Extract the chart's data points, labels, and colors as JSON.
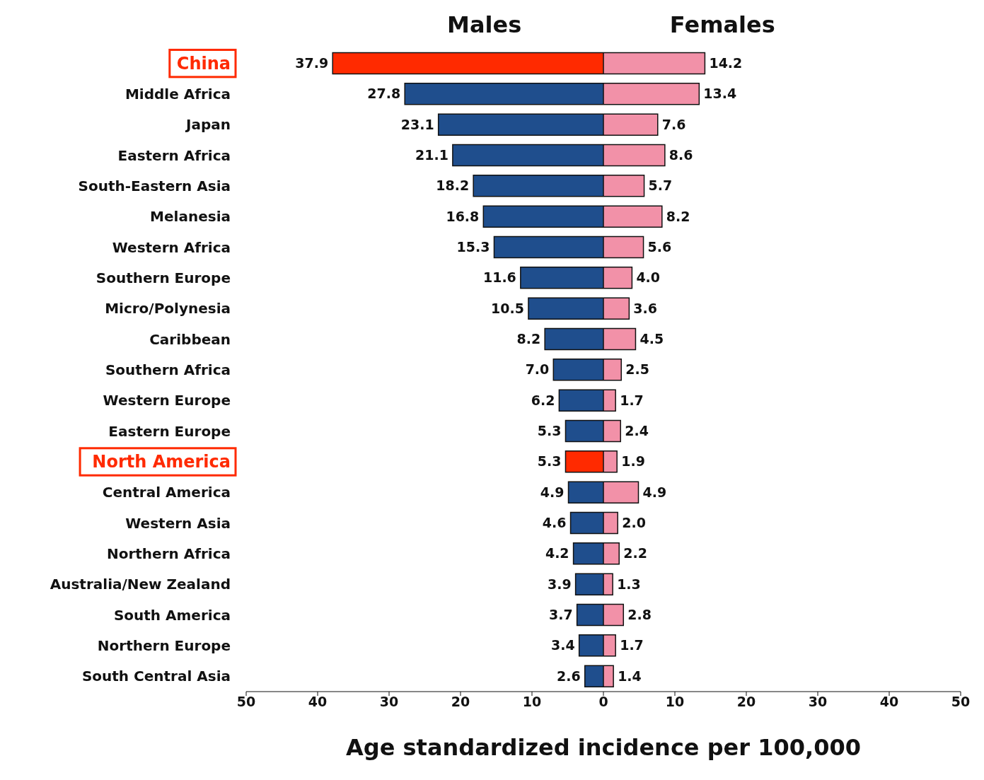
{
  "chart_data": [
    {
      "type": "bar",
      "orientation": "horizontal",
      "categories": [
        "China",
        "Middle Africa",
        "Japan",
        "Eastern Africa",
        "South-Eastern Asia",
        "Melanesia",
        "Western Africa",
        "Southern Europe",
        "Micro/Polynesia",
        "Caribbean",
        "Southern Africa",
        "Western Europe",
        "Eastern Europe",
        "North America",
        "Central America",
        "Western Asia",
        "Northern Africa",
        "Australia/New Zealand",
        "South America",
        "Northern Europe",
        "South Central Asia"
      ],
      "series": [
        {
          "name": "Males",
          "color": "#1f4e8d",
          "colors": [
            "#ff2a00",
            "#1f4e8d",
            "#1f4e8d",
            "#1f4e8d",
            "#1f4e8d",
            "#1f4e8d",
            "#1f4e8d",
            "#1f4e8d",
            "#1f4e8d",
            "#1f4e8d",
            "#1f4e8d",
            "#1f4e8d",
            "#1f4e8d",
            "#ff2a00",
            "#1f4e8d",
            "#1f4e8d",
            "#1f4e8d",
            "#1f4e8d",
            "#1f4e8d",
            "#1f4e8d",
            "#1f4e8d"
          ],
          "values": [
            37.9,
            27.8,
            23.1,
            21.1,
            18.2,
            16.8,
            15.3,
            11.6,
            10.5,
            8.2,
            7.0,
            6.2,
            5.3,
            5.3,
            4.9,
            4.6,
            4.2,
            3.9,
            3.7,
            3.4,
            2.6
          ],
          "value_labels": [
            "37.9",
            "27.8",
            "23.1",
            "21.1",
            "18.2",
            "16.8",
            "15.3",
            "11.6",
            "10.5",
            "8.2",
            "7.0",
            "6.2",
            "5.3",
            "5.3",
            "4.9",
            "4.6",
            "4.2",
            "3.9",
            "3.7",
            "3.4",
            "2.6"
          ]
        }
      ],
      "xlim": [
        50,
        0
      ],
      "xticks": [
        50,
        40,
        30,
        20,
        10
      ]
    },
    {
      "type": "bar",
      "orientation": "horizontal",
      "xlabel": "Age standardized incidence per 100,000",
      "tick_labels": "x",
      "categories": [
        null,
        null,
        null,
        null,
        null,
        null,
        null,
        null,
        null,
        null,
        null,
        null,
        null,
        null,
        null,
        null,
        null,
        null,
        null,
        null,
        null
      ],
      "series": [
        {
          "name": "Females",
          "color": "#f291a8",
          "values": [
            14.2,
            13.4,
            7.6,
            8.6,
            5.7,
            8.2,
            5.6,
            4.0,
            3.6,
            4.5,
            2.5,
            1.7,
            2.4,
            1.9,
            4.9,
            2.0,
            2.2,
            1.3,
            2.8,
            1.7,
            1.4
          ],
          "value_labels": [
            "14.2",
            "13.4",
            "7.6",
            "8.6",
            "5.7",
            "8.2",
            "5.6",
            "4.0",
            "3.6",
            "4.5",
            "2.5",
            "1.7",
            "2.4",
            "1.9",
            "4.9",
            "2.0",
            "2.2",
            "1.3",
            "2.8",
            "1.7",
            "1.4"
          ]
        }
      ],
      "xlim": [
        0,
        50
      ],
      "xticks": [
        0,
        10,
        20,
        30,
        40,
        50
      ]
    }
  ]
}
